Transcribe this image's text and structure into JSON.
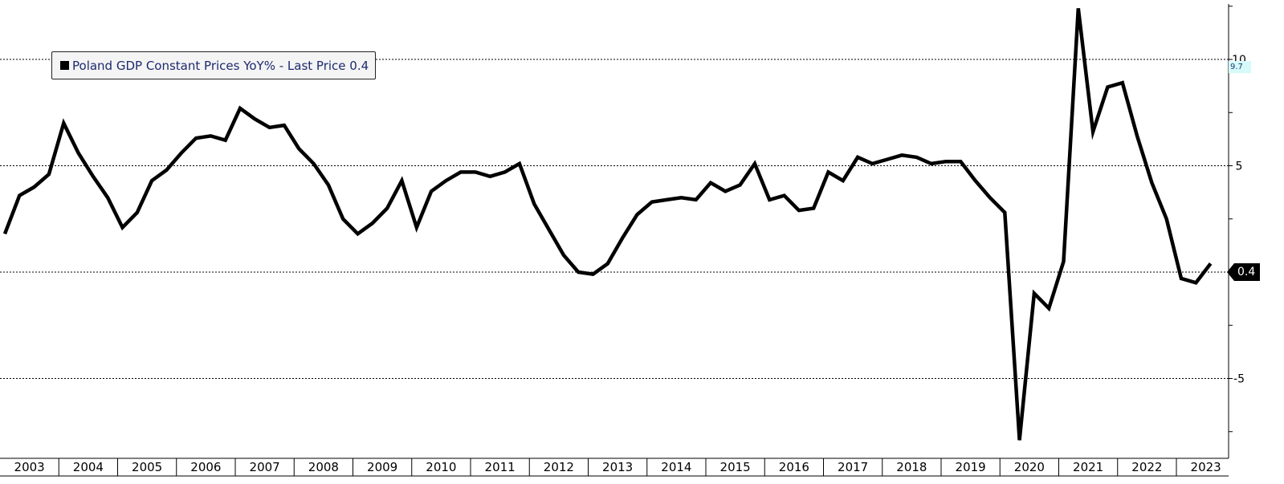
{
  "chart_data": {
    "type": "line",
    "title": "",
    "xlabel": "",
    "ylabel": "",
    "x_tick_labels": [
      "2003",
      "2004",
      "2005",
      "2006",
      "2007",
      "2008",
      "2009",
      "2010",
      "2011",
      "2012",
      "2013",
      "2014",
      "2015",
      "2016",
      "2017",
      "2018",
      "2019",
      "2020",
      "2021",
      "2022",
      "2023"
    ],
    "y_tick_labels": [
      "-5",
      "0",
      "5",
      "10"
    ],
    "ylim": [
      -7.6,
      12.7
    ],
    "xlim": [
      2003.0,
      2023.75
    ],
    "grid": "horizontal dotted at -5, 0, 5, 10",
    "legend_position": "top-left",
    "line_color": "#000000",
    "series": [
      {
        "name": "Poland GDP Constant Prices YoY%",
        "x": [
          2003.0,
          2003.25,
          2003.5,
          2003.75,
          2004.0,
          2004.25,
          2004.5,
          2004.75,
          2005.0,
          2005.25,
          2005.5,
          2005.75,
          2006.0,
          2006.25,
          2006.5,
          2006.75,
          2007.0,
          2007.25,
          2007.5,
          2007.75,
          2008.0,
          2008.25,
          2008.5,
          2008.75,
          2009.0,
          2009.25,
          2009.5,
          2009.75,
          2010.0,
          2010.25,
          2010.5,
          2010.75,
          2011.0,
          2011.25,
          2011.5,
          2011.75,
          2012.0,
          2012.25,
          2012.5,
          2012.75,
          2013.0,
          2013.25,
          2013.5,
          2013.75,
          2014.0,
          2014.25,
          2014.5,
          2014.75,
          2015.0,
          2015.25,
          2015.5,
          2015.75,
          2016.0,
          2016.25,
          2016.5,
          2016.75,
          2017.0,
          2017.25,
          2017.5,
          2017.75,
          2018.0,
          2018.25,
          2018.5,
          2018.75,
          2019.0,
          2019.25,
          2019.5,
          2019.75,
          2020.0,
          2020.25,
          2020.5,
          2020.75,
          2021.0,
          2021.25,
          2021.5,
          2021.75,
          2022.0,
          2022.25,
          2022.5,
          2022.75,
          2023.0,
          2023.25,
          2023.5
        ],
        "values": [
          1.8,
          3.6,
          4.0,
          4.6,
          7.0,
          5.6,
          4.5,
          3.5,
          2.1,
          2.8,
          4.3,
          4.8,
          5.6,
          6.3,
          6.4,
          6.2,
          7.7,
          7.2,
          6.8,
          6.9,
          5.8,
          5.1,
          4.1,
          2.5,
          1.8,
          2.3,
          3.0,
          4.3,
          2.1,
          3.8,
          4.3,
          4.7,
          4.7,
          4.5,
          4.7,
          5.1,
          3.2,
          2.0,
          0.8,
          0.0,
          -0.1,
          0.4,
          1.6,
          2.7,
          3.3,
          3.4,
          3.5,
          3.4,
          4.2,
          3.8,
          4.1,
          5.1,
          3.4,
          3.6,
          2.9,
          3.0,
          4.7,
          4.3,
          5.4,
          5.1,
          5.3,
          5.5,
          5.4,
          5.1,
          5.2,
          5.2,
          4.3,
          3.5,
          2.8,
          -7.9,
          -1.0,
          -1.7,
          0.5,
          12.4,
          6.6,
          8.7,
          8.9,
          6.4,
          4.2,
          2.5,
          -0.3,
          -0.5,
          0.4
        ]
      }
    ],
    "last_price": "0.4",
    "secondary_axis_tag": "9.7"
  },
  "legend": {
    "label": "Poland GDP Constant Prices YoY% - Last Price 0.4"
  }
}
